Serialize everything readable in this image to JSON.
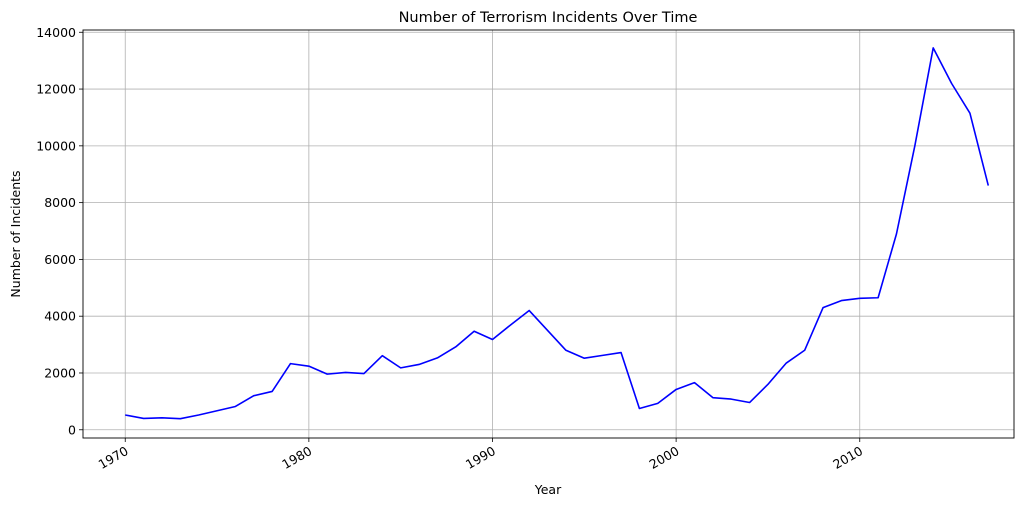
{
  "chart_data": {
    "type": "line",
    "title": "Number of Terrorism Incidents Over Time",
    "xlabel": "Year",
    "ylabel": "Number of Incidents",
    "x_range": [
      1967.7,
      2018.4
    ],
    "ylim": [
      -290,
      14080
    ],
    "x_ticks": [
      1970,
      1980,
      1990,
      2000,
      2010
    ],
    "x_tick_labels": [
      "1970",
      "1980",
      "1990",
      "2000",
      "2010"
    ],
    "y_ticks": [
      0,
      2000,
      4000,
      6000,
      8000,
      10000,
      12000,
      14000
    ],
    "y_tick_labels": [
      "0",
      "2000",
      "4000",
      "6000",
      "8000",
      "10000",
      "12000",
      "14000"
    ],
    "grid": true,
    "line_color": "#0000ff",
    "x_tick_rotation_deg": 30,
    "series": [
      {
        "x": [
          1970,
          1971,
          1972,
          1973,
          1974,
          1975,
          1976,
          1977,
          1978,
          1979,
          1980,
          1981,
          1982,
          1983,
          1984,
          1985,
          1986,
          1987,
          1988,
          1989,
          1990,
          1991,
          1992,
          1994,
          1995,
          1996,
          1997,
          1998,
          1999,
          2000,
          2001,
          2002,
          2003,
          2004,
          2005,
          2006,
          2007,
          2008,
          2009,
          2010,
          2011,
          2012,
          2013,
          2014,
          2015,
          2016,
          2017
        ],
        "values": [
          520,
          400,
          420,
          390,
          520,
          670,
          820,
          1200,
          1350,
          2330,
          2240,
          1960,
          2020,
          1980,
          2610,
          2180,
          2300,
          2530,
          2920,
          3470,
          3180,
          3700,
          4200,
          2800,
          2520,
          2620,
          2720,
          750,
          930,
          1420,
          1660,
          1130,
          1080,
          960,
          1600,
          2350,
          2800,
          4300,
          4550,
          4630,
          4650,
          6900,
          10000,
          13450,
          12200,
          11150,
          8600
        ]
      }
    ]
  }
}
